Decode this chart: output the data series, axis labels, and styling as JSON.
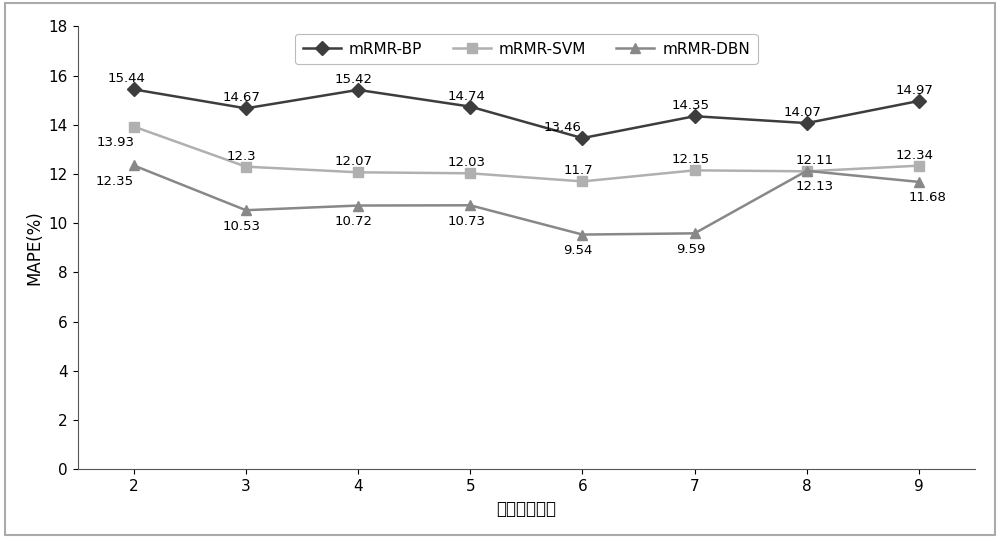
{
  "x": [
    2,
    3,
    4,
    5,
    6,
    7,
    8,
    9
  ],
  "mRMR_BP": [
    15.44,
    14.67,
    15.42,
    14.74,
    13.46,
    14.35,
    14.07,
    14.97
  ],
  "mRMR_SVM": [
    13.93,
    12.3,
    12.07,
    12.03,
    11.7,
    12.15,
    12.11,
    12.34
  ],
  "mRMR_DBN": [
    12.35,
    10.53,
    10.72,
    10.73,
    9.54,
    9.59,
    12.13,
    11.68
  ],
  "labels_BP": [
    "15.44",
    "14.67",
    "15.42",
    "14.74",
    "13.46",
    "14.35",
    "14.07",
    "14.97"
  ],
  "labels_SVM": [
    "13.93",
    "12.3",
    "12.07",
    "12.03",
    "11.7",
    "12.15",
    "12.11",
    "12.34"
  ],
  "labels_DBN": [
    "12.35",
    "10.53",
    "10.72",
    "10.73",
    "9.54",
    "9.59",
    "12.13",
    "11.68"
  ],
  "color_BP": "#3d3d3d",
  "color_SVM": "#b0b0b0",
  "color_DBN": "#888888",
  "xlabel": "按序输入个数",
  "ylabel": "MAPE(%)",
  "ylim": [
    0,
    18
  ],
  "yticks": [
    0,
    2,
    4,
    6,
    8,
    10,
    12,
    14,
    16,
    18
  ],
  "legend_labels": [
    "mRMR-BP",
    "mRMR-SVM",
    "mRMR-DBN"
  ],
  "background_color": "#ffffff",
  "border_color": "#aaaaaa",
  "legend_fontsize": 11,
  "label_fontsize": 12,
  "tick_fontsize": 11,
  "annotation_fontsize": 9.5
}
